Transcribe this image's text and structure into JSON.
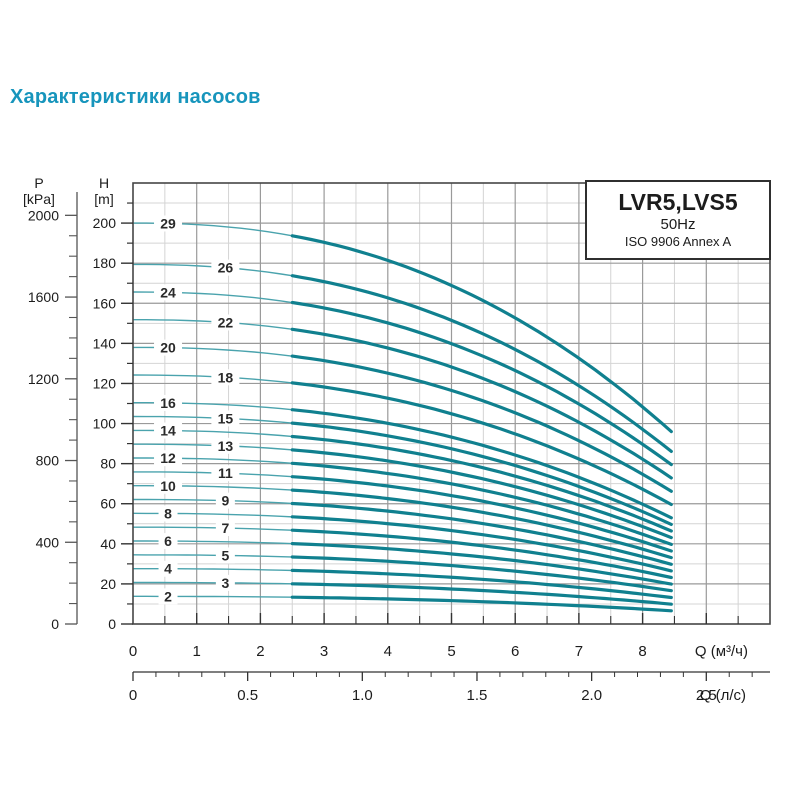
{
  "page": {
    "title": "Характеристики насосов",
    "title_color": "#1795bc"
  },
  "chart_data": {
    "type": "line",
    "title": "LVR5,LVS5",
    "subtitle": "50Hz",
    "note": "ISO 9906 Annex A",
    "x_axis_primary": {
      "label": "Q (м³/ч)",
      "tick_labels": [
        "0",
        "1",
        "2",
        "3",
        "4",
        "5",
        "6",
        "7",
        "8"
      ],
      "tick_values": [
        0,
        1,
        2,
        3,
        4,
        5,
        6,
        7,
        8
      ],
      "range": [
        0,
        10
      ],
      "minor_step": 0.5
    },
    "x_axis_secondary": {
      "label": "Q (л/с)",
      "tick_labels": [
        "0",
        "0.5",
        "1.0",
        "1.5",
        "2.0",
        "2.5"
      ],
      "tick_values": [
        0,
        0.5,
        1.0,
        1.5,
        2.0,
        2.5
      ],
      "range": [
        0,
        2.78
      ],
      "minor_step": 0.1
    },
    "y_axis_head": {
      "title": "H",
      "unit": "[m]",
      "tick_values": [
        0,
        20,
        40,
        60,
        80,
        100,
        120,
        140,
        160,
        180,
        200
      ],
      "range": [
        0,
        220
      ],
      "minor_step": 10
    },
    "y_axis_pressure": {
      "title": "P",
      "unit": "[kPa]",
      "tick_values": [
        0,
        400,
        800,
        1200,
        1600,
        2000
      ],
      "minor_step": 100,
      "kpa_per_m": 9.81
    },
    "model": {
      "q_max_m3h": 8.45,
      "duty_range_start_m3h": 2.5,
      "droop_exponent": 2.3
    },
    "series": [
      {
        "stages": "29",
        "shutoff_head_m": 200.0,
        "end_head_m": 96.0,
        "label_q": 0.55
      },
      {
        "stages": "26",
        "shutoff_head_m": 179.4,
        "end_head_m": 86.1,
        "label_q": 1.45
      },
      {
        "stages": "24",
        "shutoff_head_m": 165.6,
        "end_head_m": 79.5,
        "label_q": 0.55
      },
      {
        "stages": "22",
        "shutoff_head_m": 151.8,
        "end_head_m": 72.9,
        "label_q": 1.45
      },
      {
        "stages": "20",
        "shutoff_head_m": 138.0,
        "end_head_m": 66.2,
        "label_q": 0.55
      },
      {
        "stages": "18",
        "shutoff_head_m": 124.2,
        "end_head_m": 59.6,
        "label_q": 1.45
      },
      {
        "stages": "16",
        "shutoff_head_m": 110.4,
        "end_head_m": 53.0,
        "label_q": 0.55
      },
      {
        "stages": "15",
        "shutoff_head_m": 103.5,
        "end_head_m": 49.7,
        "label_q": 1.45
      },
      {
        "stages": "14",
        "shutoff_head_m": 96.6,
        "end_head_m": 46.4,
        "label_q": 0.55
      },
      {
        "stages": "13",
        "shutoff_head_m": 89.7,
        "end_head_m": 43.1,
        "label_q": 1.45
      },
      {
        "stages": "12",
        "shutoff_head_m": 82.8,
        "end_head_m": 39.7,
        "label_q": 0.55
      },
      {
        "stages": "11",
        "shutoff_head_m": 75.9,
        "end_head_m": 36.4,
        "label_q": 1.45
      },
      {
        "stages": "10",
        "shutoff_head_m": 69.0,
        "end_head_m": 33.1,
        "label_q": 0.55
      },
      {
        "stages": "9",
        "shutoff_head_m": 62.1,
        "end_head_m": 29.8,
        "label_q": 1.45
      },
      {
        "stages": "8",
        "shutoff_head_m": 55.2,
        "end_head_m": 26.5,
        "label_q": 0.55
      },
      {
        "stages": "7",
        "shutoff_head_m": 48.3,
        "end_head_m": 23.2,
        "label_q": 1.45
      },
      {
        "stages": "6",
        "shutoff_head_m": 41.4,
        "end_head_m": 19.9,
        "label_q": 0.55
      },
      {
        "stages": "5",
        "shutoff_head_m": 34.5,
        "end_head_m": 16.6,
        "label_q": 1.45
      },
      {
        "stages": "4",
        "shutoff_head_m": 27.6,
        "end_head_m": 13.2,
        "label_q": 0.55
      },
      {
        "stages": "3",
        "shutoff_head_m": 20.7,
        "end_head_m": 9.9,
        "label_q": 1.45
      },
      {
        "stages": "2",
        "shutoff_head_m": 13.8,
        "end_head_m": 6.6,
        "label_q": 0.55
      }
    ],
    "colors": {
      "curve_thick": "#10808f",
      "curve_thin": "#4aa3ad",
      "grid_major": "#9a9a9a",
      "grid_minor": "#d4d4d4",
      "border": "#454545",
      "axis_text": "#1c1c1c",
      "curve_label": "#2a2a2a"
    },
    "legend_position": "top-right",
    "grid": true
  }
}
